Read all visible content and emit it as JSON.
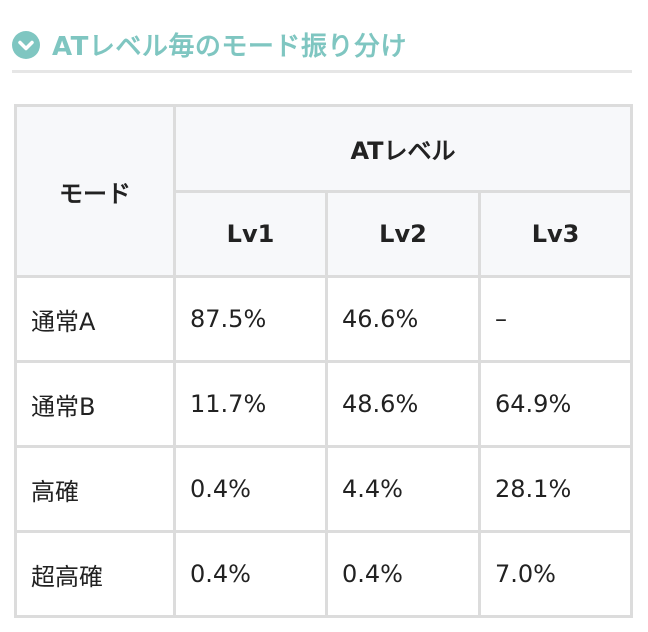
{
  "header": {
    "title": "ATレベル毎のモード振り分け"
  },
  "table": {
    "corner": "モード",
    "group": "ATレベル",
    "levels": [
      "Lv1",
      "Lv2",
      "Lv3"
    ],
    "rows": [
      [
        "通常A",
        "87.5%",
        "46.6%",
        "–"
      ],
      [
        "通常B",
        "11.7%",
        "48.6%",
        "64.9%"
      ],
      [
        "高確",
        "0.4%",
        "4.4%",
        "28.1%"
      ],
      [
        "超高確",
        "0.4%",
        "0.4%",
        "7.0%"
      ]
    ]
  }
}
